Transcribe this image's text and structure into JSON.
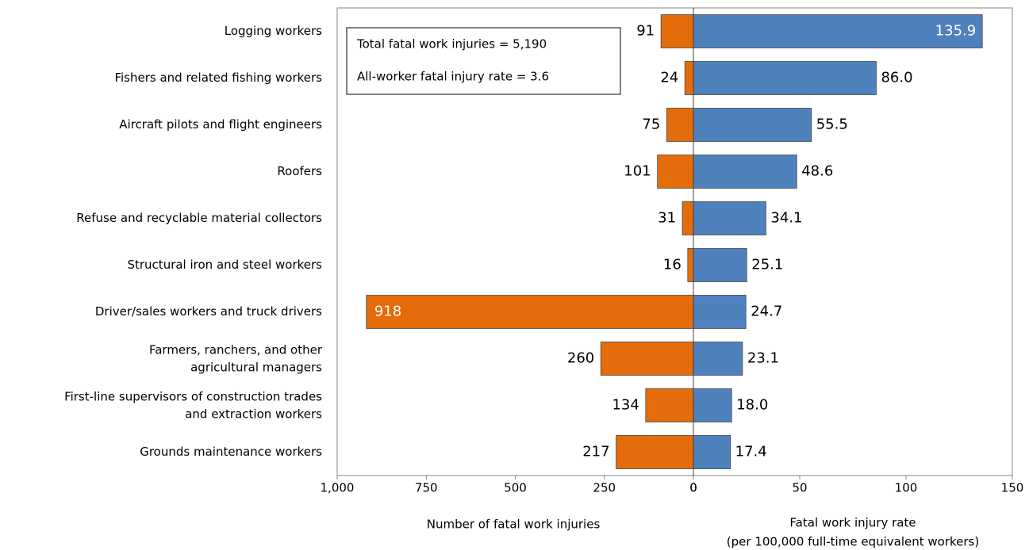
{
  "chart_data": {
    "type": "butterfly",
    "categories": [
      "Logging workers",
      "Fishers and related fishing workers",
      "Aircraft pilots and flight engineers",
      "Roofers",
      "Refuse and recyclable material collectors",
      "Structural iron and steel workers",
      "Driver/sales workers and truck drivers",
      "Farmers, ranchers, and other\nagricultural managers",
      "First-line supervisors of construction trades\nand extraction workers",
      "Grounds maintenance workers"
    ],
    "series": [
      {
        "name": "Number of fatal work injuries",
        "color": "#e46c0a",
        "axis": "x",
        "values": [
          91,
          24,
          75,
          101,
          31,
          16,
          918,
          260,
          134,
          217
        ]
      },
      {
        "name": "Fatal work injury rate",
        "color": "#4f81bd",
        "axis": "x2",
        "values": [
          135.9,
          86,
          55.5,
          48.6,
          34.1,
          25.1,
          24.7,
          23.1,
          18,
          17.4
        ],
        "value_labels": [
          "135.9",
          "86.0",
          "55.5",
          "48.6",
          "34.1",
          "25.1",
          "24.7",
          "23.1",
          "18.0",
          "17.4"
        ]
      }
    ],
    "xlim": [
      1000,
      0
    ],
    "xticks": [
      {
        "value": 1000,
        "label": "1,000"
      },
      750,
      500,
      250,
      0
    ],
    "x2lim": [
      0,
      150
    ],
    "x2ticks": [
      0,
      50,
      100,
      150
    ],
    "xlabel": "Number of fatal work injuries",
    "x2label": [
      "Fatal work injury rate",
      "(per 100,000 full-time equivalent workers)"
    ],
    "annotations": [
      "Total fatal work injuries = 5,190",
      "All-worker fatal injury rate = 3.6"
    ]
  }
}
